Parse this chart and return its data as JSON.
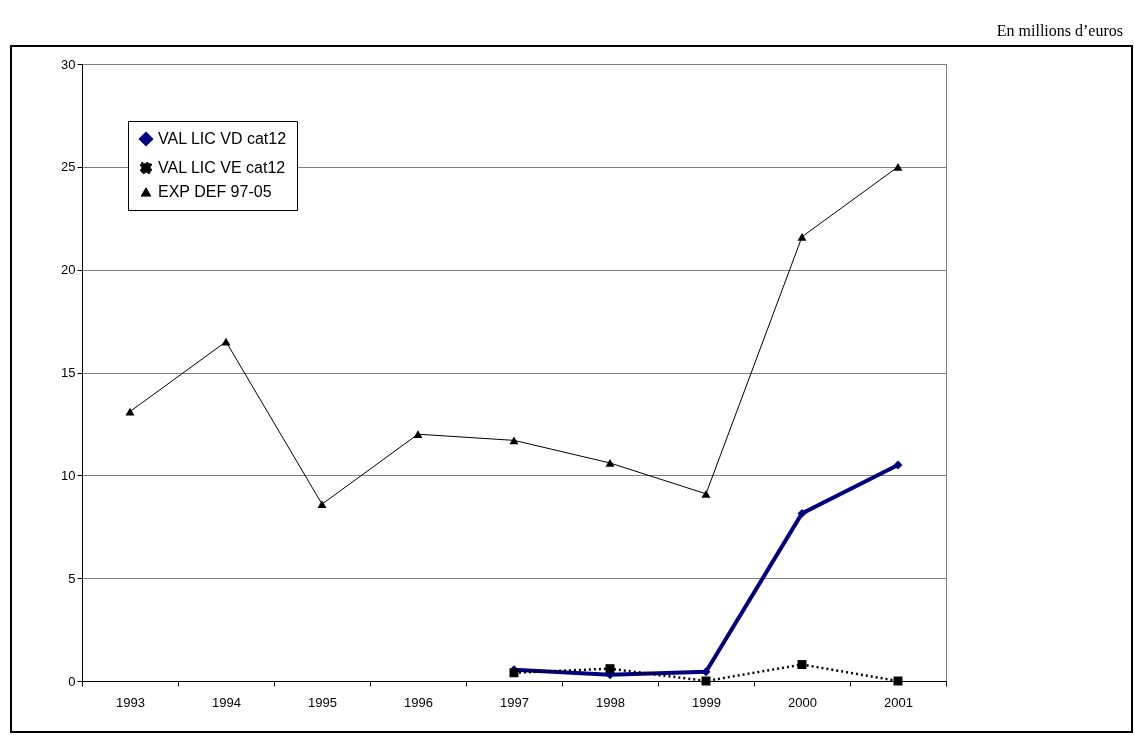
{
  "chart_data": {
    "type": "line",
    "annotations": [
      "En millions d’euros"
    ],
    "categories": [
      "1993",
      "1994",
      "1995",
      "1996",
      "1997",
      "1998",
      "1999",
      "2000",
      "2001"
    ],
    "series": [
      {
        "name": "VAL LIC VD cat12",
        "color": "#000080",
        "marker": "diamond",
        "line_style": "solid",
        "values": [
          null,
          null,
          null,
          null,
          0.55,
          0.3,
          0.45,
          8.15,
          10.5
        ]
      },
      {
        "name": "VAL LIC VE cat12",
        "color": "#000000",
        "marker": "square",
        "line_style": "dotted",
        "values": [
          null,
          null,
          null,
          null,
          0.4,
          0.6,
          0,
          0.8,
          0
        ]
      },
      {
        "name": "EXP DEF 97-05",
        "color": "#000000",
        "marker": "triangle",
        "line_style": "solid",
        "values": [
          13.1,
          16.5,
          8.6,
          12.0,
          11.7,
          10.6,
          9.1,
          21.6,
          25.0
        ]
      }
    ],
    "ylim": [
      0,
      30
    ],
    "yticks": [
      0,
      5,
      10,
      15,
      20,
      25,
      30
    ],
    "grid": "y",
    "legend": "top left"
  }
}
